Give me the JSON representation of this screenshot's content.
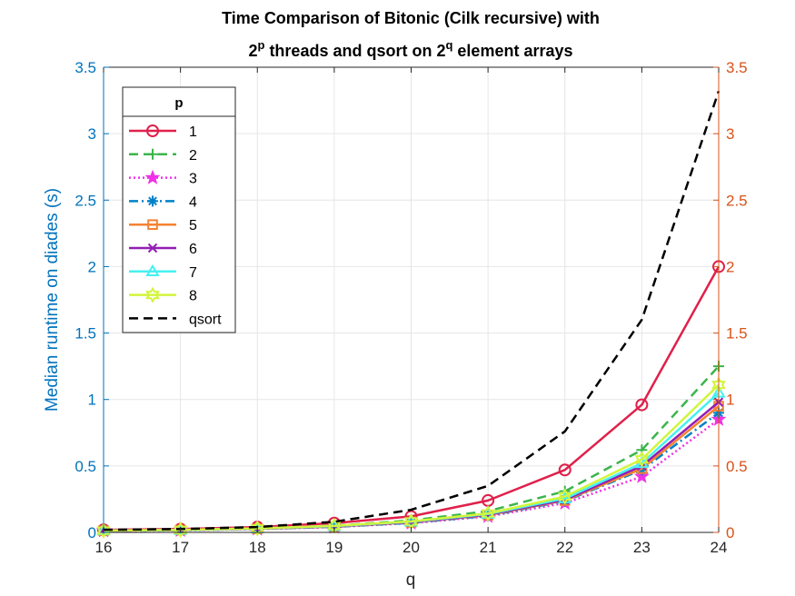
{
  "chart_data": {
    "type": "line",
    "title": {
      "line1": "Time Comparison of Bitonic (Cilk recursive) with",
      "line2_pre": "2",
      "line2_sup1": "p",
      "line2_mid": " threads and qsort on 2",
      "line2_sup2": "q",
      "line2_post": " element arrays"
    },
    "xlabel": "q",
    "ylabel": "Median runtime on diades (s)",
    "x": [
      16,
      17,
      18,
      19,
      20,
      21,
      22,
      23,
      24
    ],
    "xlim": [
      16,
      24
    ],
    "ylim": [
      0,
      3.5
    ],
    "xticks": [
      "16",
      "17",
      "18",
      "19",
      "20",
      "21",
      "22",
      "23",
      "24"
    ],
    "yticks_left": [
      "0",
      "0.5",
      "1",
      "1.5",
      "2",
      "2.5",
      "3",
      "3.5"
    ],
    "yticks_right": [
      "0",
      "0.5",
      "1",
      "1.5",
      "2",
      "2.5",
      "3",
      "3.5"
    ],
    "grid": true,
    "legend_title": "p",
    "legend_position": "top-left",
    "colors": {
      "left_axis": "#0072BD",
      "right_axis": "#D95319",
      "axis": "#262626",
      "grid": "#e6e6e6"
    },
    "series": [
      {
        "name": "1",
        "color": "#E0204A",
        "dash": "solid",
        "marker": "circle",
        "values": [
          0.02,
          0.025,
          0.04,
          0.07,
          0.12,
          0.24,
          0.47,
          0.96,
          2.0
        ]
      },
      {
        "name": "2",
        "color": "#3CB44B",
        "dash": "dashed",
        "marker": "plus",
        "values": [
          0.015,
          0.02,
          0.03,
          0.05,
          0.09,
          0.16,
          0.31,
          0.62,
          1.25
        ]
      },
      {
        "name": "3",
        "color": "#F032E6",
        "dash": "dotted",
        "marker": "pentagram",
        "values": [
          0.012,
          0.015,
          0.025,
          0.04,
          0.07,
          0.12,
          0.22,
          0.42,
          0.85
        ]
      },
      {
        "name": "4",
        "color": "#0082C8",
        "dash": "dashdot",
        "marker": "asterisk",
        "values": [
          0.012,
          0.016,
          0.026,
          0.042,
          0.072,
          0.125,
          0.235,
          0.47,
          0.9
        ]
      },
      {
        "name": "5",
        "color": "#F58231",
        "dash": "solid",
        "marker": "square",
        "values": [
          0.013,
          0.017,
          0.027,
          0.044,
          0.075,
          0.13,
          0.24,
          0.48,
          0.95
        ]
      },
      {
        "name": "6",
        "color": "#911EB4",
        "dash": "solid",
        "marker": "x",
        "values": [
          0.013,
          0.017,
          0.028,
          0.045,
          0.077,
          0.133,
          0.245,
          0.5,
          0.98
        ]
      },
      {
        "name": "7",
        "color": "#46F0F0",
        "dash": "solid",
        "marker": "triangle",
        "values": [
          0.014,
          0.018,
          0.029,
          0.047,
          0.08,
          0.138,
          0.255,
          0.52,
          1.05
        ]
      },
      {
        "name": "8",
        "color": "#D2F53C",
        "dash": "solid",
        "marker": "hexagram",
        "values": [
          0.014,
          0.019,
          0.03,
          0.049,
          0.083,
          0.143,
          0.27,
          0.55,
          1.11
        ]
      },
      {
        "name": "qsort",
        "color": "#000000",
        "dash": "dashed",
        "marker": "none",
        "values": [
          0.02,
          0.025,
          0.04,
          0.08,
          0.17,
          0.35,
          0.76,
          1.6,
          3.32
        ]
      }
    ]
  }
}
